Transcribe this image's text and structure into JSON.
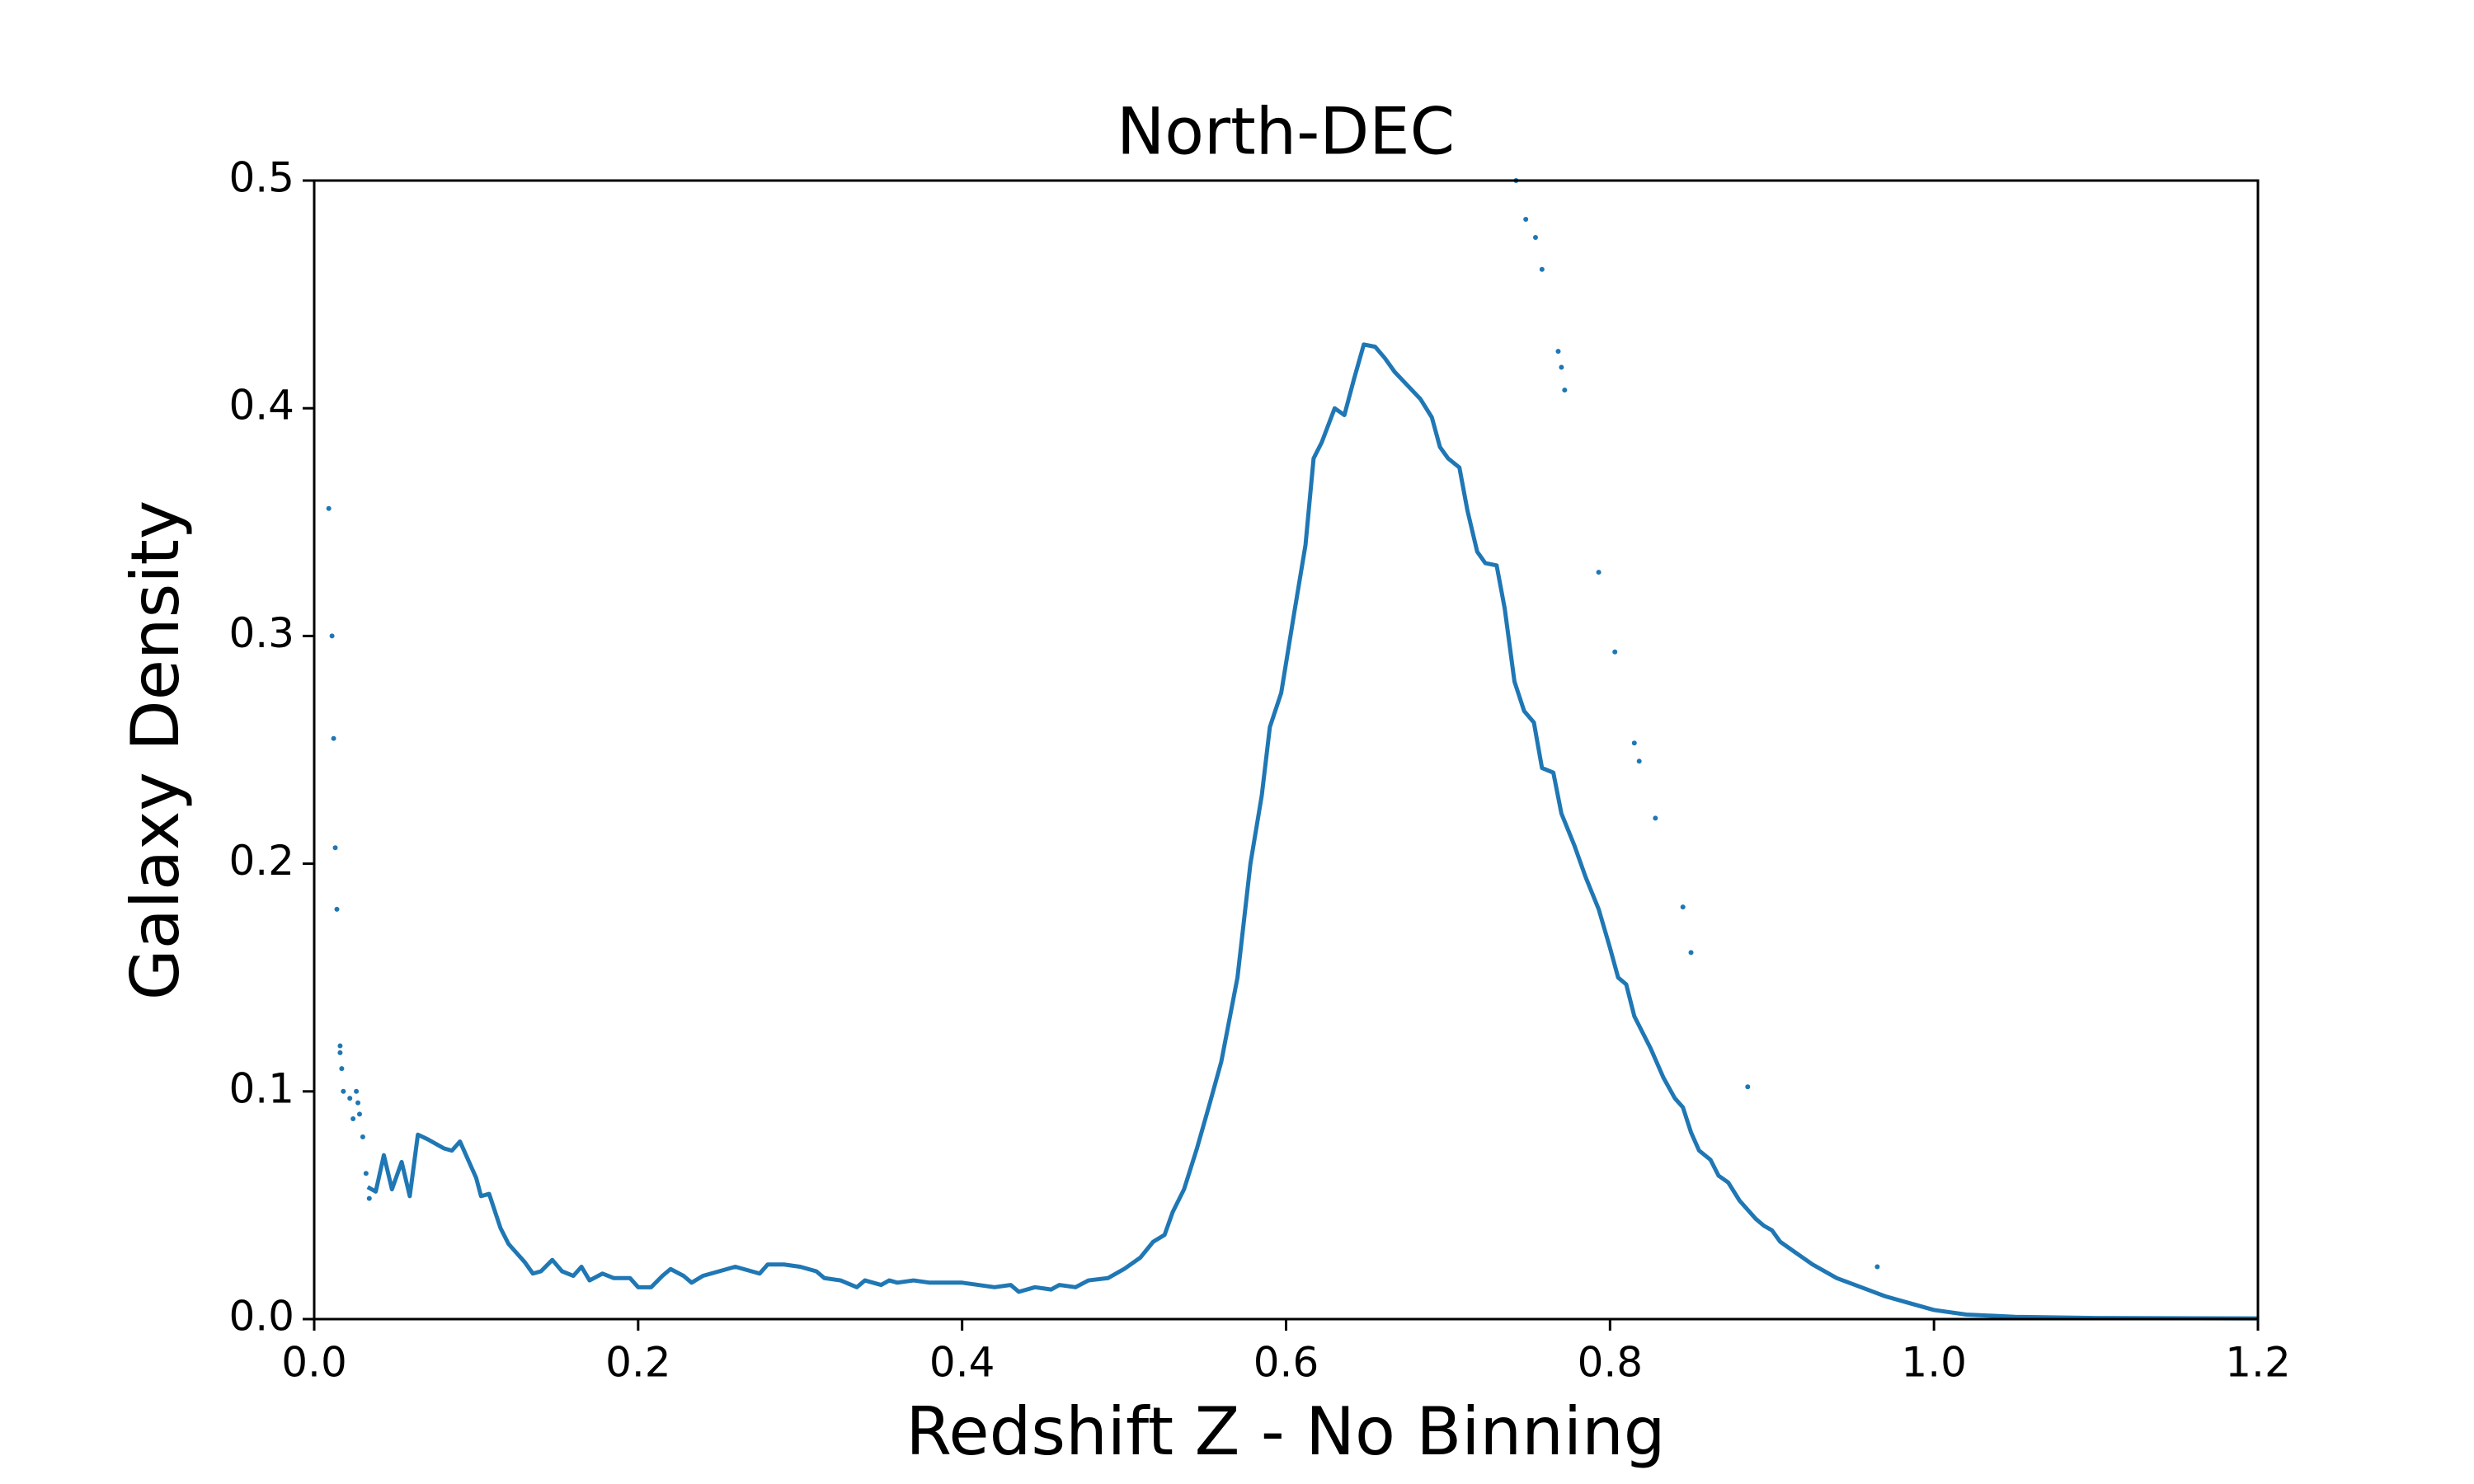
{
  "chart_data": {
    "type": "line",
    "title": "North-DEC",
    "x_label": "Redshift Z - No Binning",
    "y_label": "Galaxy Density",
    "xlim": [
      0,
      1.2
    ],
    "ylim": [
      0,
      0.5
    ],
    "xticks": [
      {
        "value": 0,
        "label": "0.0"
      },
      0.2,
      0.4,
      0.6,
      0.8,
      {
        "value": 1,
        "label": "1.0"
      },
      1.2
    ],
    "yticks": [
      {
        "value": 0,
        "label": "0.0"
      },
      0.1,
      0.2,
      0.3,
      0.4,
      0.5
    ],
    "grid": false,
    "series": [
      {
        "kind": "line",
        "color": "#1f77b4",
        "x": [
          0.033,
          0.038,
          0.043,
          0.048,
          0.054,
          0.059,
          0.064,
          0.07,
          0.08,
          0.085,
          0.09,
          0.1,
          0.103,
          0.108,
          0.115,
          0.12,
          0.13,
          0.135,
          0.14,
          0.147,
          0.153,
          0.16,
          0.165,
          0.17,
          0.178,
          0.185,
          0.195,
          0.2,
          0.208,
          0.215,
          0.22,
          0.228,
          0.233,
          0.24,
          0.25,
          0.26,
          0.27,
          0.275,
          0.28,
          0.29,
          0.3,
          0.31,
          0.315,
          0.325,
          0.335,
          0.34,
          0.35,
          0.355,
          0.36,
          0.37,
          0.38,
          0.4,
          0.41,
          0.42,
          0.43,
          0.435,
          0.445,
          0.455,
          0.46,
          0.47,
          0.478,
          0.49,
          0.5,
          0.51,
          0.518,
          0.525,
          0.53,
          0.537,
          0.545,
          0.553,
          0.56,
          0.57,
          0.578,
          0.585,
          0.59,
          0.597,
          0.605,
          0.612,
          0.617,
          0.622,
          0.63,
          0.636,
          0.642,
          0.648,
          0.655,
          0.661,
          0.667,
          0.675,
          0.683,
          0.69,
          0.695,
          0.7,
          0.707,
          0.712,
          0.718,
          0.723,
          0.73,
          0.735,
          0.741,
          0.747,
          0.753,
          0.758,
          0.765,
          0.77,
          0.778,
          0.785,
          0.793,
          0.8,
          0.805,
          0.81,
          0.815,
          0.825,
          0.833,
          0.84,
          0.845,
          0.85,
          0.855,
          0.862,
          0.867,
          0.873,
          0.88,
          0.89,
          0.895,
          0.9,
          0.905,
          0.915,
          0.925,
          0.94,
          0.955,
          0.97,
          0.985,
          1.0,
          1.02,
          1.05,
          1.1,
          1.2
        ],
        "values": [
          0.058,
          0.056,
          0.072,
          0.057,
          0.069,
          0.054,
          0.081,
          0.079,
          0.075,
          0.074,
          0.078,
          0.062,
          0.054,
          0.055,
          0.04,
          0.033,
          0.025,
          0.02,
          0.021,
          0.026,
          0.021,
          0.019,
          0.023,
          0.017,
          0.02,
          0.018,
          0.018,
          0.014,
          0.014,
          0.019,
          0.022,
          0.019,
          0.016,
          0.019,
          0.021,
          0.023,
          0.021,
          0.02,
          0.024,
          0.024,
          0.023,
          0.021,
          0.018,
          0.017,
          0.014,
          0.017,
          0.015,
          0.017,
          0.016,
          0.017,
          0.016,
          0.016,
          0.015,
          0.014,
          0.015,
          0.012,
          0.014,
          0.013,
          0.015,
          0.014,
          0.017,
          0.018,
          0.022,
          0.027,
          0.034,
          0.037,
          0.047,
          0.057,
          0.075,
          0.095,
          0.113,
          0.15,
          0.2,
          0.23,
          0.26,
          0.275,
          0.31,
          0.34,
          0.378,
          0.385,
          0.4,
          0.397,
          0.413,
          0.428,
          0.427,
          0.422,
          0.416,
          0.41,
          0.404,
          0.396,
          0.383,
          0.378,
          0.374,
          0.355,
          0.337,
          0.332,
          0.331,
          0.312,
          0.28,
          0.267,
          0.262,
          0.242,
          0.24,
          0.222,
          0.208,
          0.194,
          0.18,
          0.163,
          0.15,
          0.147,
          0.133,
          0.119,
          0.106,
          0.097,
          0.093,
          0.082,
          0.074,
          0.07,
          0.063,
          0.06,
          0.052,
          0.044,
          0.041,
          0.039,
          0.034,
          0.029,
          0.024,
          0.018,
          0.014,
          0.01,
          0.007,
          0.004,
          0.002,
          0.001,
          0.0005,
          0.0003
        ]
      },
      {
        "kind": "scatter",
        "color": "#1f77b4",
        "x": [
          0.009,
          0.011,
          0.012,
          0.013,
          0.014,
          0.016,
          0.016,
          0.017,
          0.018,
          0.022,
          0.024,
          0.026,
          0.027,
          0.028,
          0.03,
          0.032,
          0.034,
          0.742,
          0.748,
          0.754,
          0.758,
          0.768,
          0.77,
          0.772,
          0.793,
          0.803,
          0.815,
          0.818,
          0.828,
          0.845,
          0.85,
          0.885,
          0.965
        ],
        "values": [
          0.356,
          0.3,
          0.255,
          0.207,
          0.18,
          0.12,
          0.117,
          0.11,
          0.1,
          0.097,
          0.088,
          0.1,
          0.095,
          0.09,
          0.08,
          0.064,
          0.053,
          0.5,
          0.483,
          0.475,
          0.461,
          0.425,
          0.418,
          0.408,
          0.328,
          0.293,
          0.253,
          0.245,
          0.22,
          0.181,
          0.161,
          0.102,
          0.023
        ]
      }
    ]
  }
}
